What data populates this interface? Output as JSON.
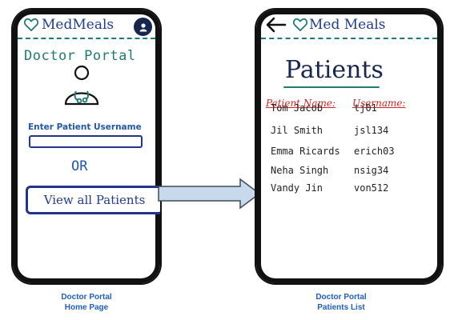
{
  "home": {
    "app_name": "MedMeals",
    "portal_title": "Doctor Portal",
    "enter_label": "Enter Patient Username",
    "username_value": "",
    "or_text": "OR",
    "view_all_label": "View all Patients"
  },
  "patients_page": {
    "app_name": "Med Meals",
    "title": "Patients",
    "col_name": "Patient Name:",
    "col_username": "Username:",
    "patients": [
      {
        "name": "Tom Jacob",
        "username": "tj01"
      },
      {
        "name": "Jil Smith",
        "username": "jsl134"
      },
      {
        "name": "Emma Ricards",
        "username": "erich03"
      },
      {
        "name": "Neha Singh",
        "username": "nsig34"
      },
      {
        "name": "Vandy Jin",
        "username": "von512"
      }
    ]
  },
  "captions": {
    "left_line1": "Doctor Portal",
    "left_line2": "Home Page",
    "right_line1": "Doctor Portal",
    "right_line2": "Patients List"
  },
  "colors": {
    "teal": "#1f7b72",
    "navy": "#16264f",
    "blue": "#2158a9",
    "red": "#d22525",
    "arrow_fill": "#c9d9ec",
    "caption": "#1f5fbf"
  }
}
